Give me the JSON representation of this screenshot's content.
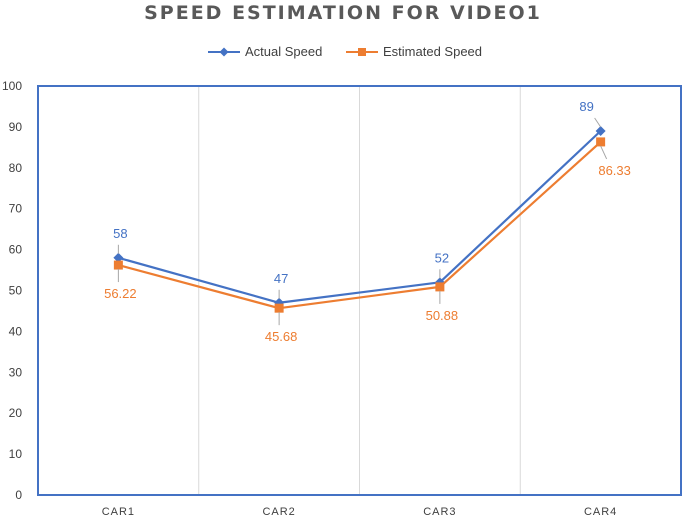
{
  "chart_data": {
    "type": "line",
    "title": "SPEED ESTIMATION FOR VIDEO1",
    "xlabel": "",
    "ylabel": "",
    "categories": [
      "CAR1",
      "CAR2",
      "CAR3",
      "CAR4"
    ],
    "ylim": [
      0,
      100
    ],
    "yticks": [
      0,
      10,
      20,
      30,
      40,
      50,
      60,
      70,
      80,
      90,
      100
    ],
    "yticks_labels": [
      "0",
      "10",
      "20",
      "30",
      "40",
      "50",
      "60",
      "70",
      "80",
      "90",
      "100"
    ],
    "grid": "vertical",
    "legend": "top",
    "series": [
      {
        "name": "Actual Speed",
        "color": "#4472C4",
        "marker": "diamond",
        "values": [
          58,
          47,
          52,
          89
        ],
        "labels": [
          "58",
          "47",
          "52",
          "89"
        ]
      },
      {
        "name": "Estimated Speed",
        "color": "#ED7D31",
        "marker": "square",
        "values": [
          56.22,
          45.68,
          50.88,
          86.33
        ],
        "labels": [
          "56.22",
          "45.68",
          "50.88",
          "86.33"
        ]
      }
    ]
  }
}
